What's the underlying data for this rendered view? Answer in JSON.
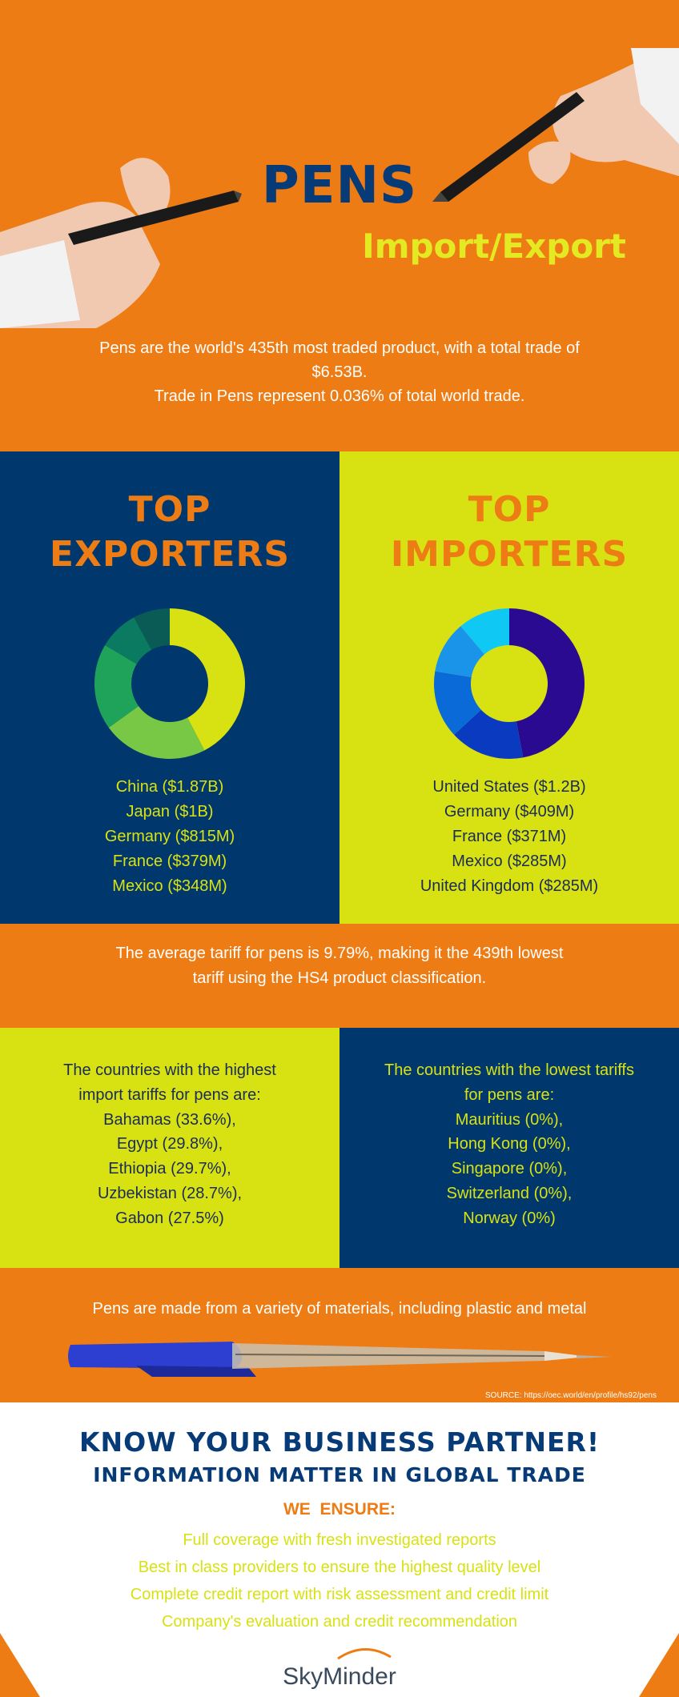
{
  "hero": {
    "title": "PENS",
    "subtitle": "Import/Export",
    "intro_line1": "Pens are the world's 435th most traded product, with a total trade of $6.53B.",
    "intro_line2": "Trade in Pens represent 0.036% of total world trade."
  },
  "exporters": {
    "title_line1": "TOP",
    "title_line2": "EXPORTERS",
    "items": [
      "China ($1.87B)",
      "Japan ($1B)",
      "Germany ($815M)",
      "France ($379M)",
      "Mexico ($348M)"
    ]
  },
  "importers": {
    "title_line1": "TOP",
    "title_line2": "IMPORTERS",
    "items": [
      "United States ($1.2B)",
      "Germany ($409M)",
      "France ($371M)",
      "Mexico ($285M)",
      "United Kingdom ($285M)"
    ]
  },
  "chart_data": [
    {
      "type": "pie",
      "categories": [
        "China",
        "Japan",
        "Germany",
        "France",
        "Mexico"
      ],
      "values": [
        1.87,
        1.0,
        0.815,
        0.379,
        0.348
      ],
      "colors": [
        "#d8e212",
        "#78c845",
        "#1fa35a",
        "#0a7a60",
        "#0a5a55"
      ]
    },
    {
      "type": "pie",
      "categories": [
        "United States",
        "Germany",
        "France",
        "Mexico",
        "United Kingdom"
      ],
      "values": [
        1.2,
        0.409,
        0.371,
        0.285,
        0.285
      ],
      "colors": [
        "#2a0a90",
        "#0a3ac0",
        "#0a6ad8",
        "#1a94e8",
        "#10c8f4"
      ]
    }
  ],
  "tariff": {
    "line1": "The average tariff for pens is 9.79%, making it the 439th lowest",
    "line2": "tariff using the HS4 product classification."
  },
  "highest_tariffs": {
    "intro_line1": "The countries with the highest",
    "intro_line2": "import tariffs for pens are:",
    "items": [
      "Bahamas (33.6%),",
      "Egypt (29.8%),",
      "Ethiopia (29.7%),",
      "Uzbekistan (28.7%),",
      "Gabon (27.5%)"
    ]
  },
  "lowest_tariffs": {
    "intro_line1": "The countries with the lowest tariffs",
    "intro_line2": "for pens are:",
    "items": [
      "Mauritius (0%),",
      "Hong Kong (0%),",
      "Singapore (0%),",
      "Switzerland (0%),",
      "Norway (0%)"
    ]
  },
  "materials": {
    "text": "Pens are made from a variety of materials, including plastic and metal",
    "source": "SOURCE: https://oec.world/en/profile/hs92/pens"
  },
  "footer": {
    "heading": "KNOW YOUR BUSINESS PARTNER!",
    "subheading": "INFORMATION MATTER IN GLOBAL TRADE",
    "ensure_label": "WE  ENSURE:",
    "ensure_items": [
      "Full coverage with fresh investigated reports",
      "Best in class providers to ensure the highest quality level",
      "Complete credit report with risk assessment and credit limit",
      "Company's evaluation and credit recommendation"
    ],
    "logo_text": "SkyMinder"
  }
}
